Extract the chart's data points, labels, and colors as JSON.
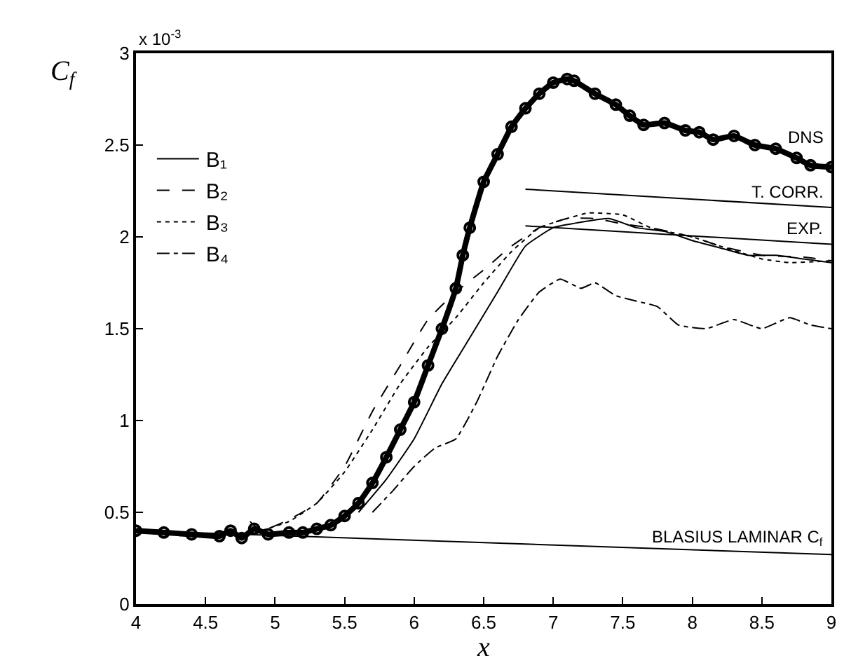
{
  "chart_data": {
    "type": "line",
    "xlabel": "x",
    "ylabel": "C$_{f}$",
    "annotations": [
      "x 10$^{-3}$"
    ],
    "xlim": [
      4,
      9
    ],
    "xticks": [
      4,
      4.5,
      5,
      5.5,
      6,
      6.5,
      7,
      7.5,
      8,
      8.5,
      9
    ],
    "ylim": [
      0,
      3
    ],
    "yticks": [
      0,
      0.5,
      1,
      1.5,
      2,
      2.5,
      3
    ],
    "legend": "top left",
    "series": [
      {
        "name": "DNS",
        "color": "#000000",
        "type": "line",
        "marker": "circle",
        "x": [
          4,
          4.2,
          4.4,
          4.6,
          4.68,
          4.76,
          4.85,
          4.95,
          5.1,
          5.2,
          5.3,
          5.4,
          5.5,
          5.6,
          5.7,
          5.8,
          5.9,
          6.0,
          6.1,
          6.2,
          6.3,
          6.35,
          6.4,
          6.5,
          6.6,
          6.7,
          6.8,
          6.9,
          7.0,
          7.1,
          7.15,
          7.3,
          7.45,
          7.55,
          7.65,
          7.8,
          7.95,
          8.05,
          8.15,
          8.3,
          8.45,
          8.6,
          8.75,
          8.85,
          9.0
        ],
        "values": [
          0.4,
          0.39,
          0.38,
          0.37,
          0.4,
          0.36,
          0.41,
          0.38,
          0.39,
          0.39,
          0.41,
          0.43,
          0.48,
          0.55,
          0.66,
          0.8,
          0.95,
          1.1,
          1.3,
          1.5,
          1.72,
          1.9,
          2.05,
          2.3,
          2.45,
          2.6,
          2.7,
          2.78,
          2.84,
          2.86,
          2.85,
          2.78,
          2.72,
          2.66,
          2.61,
          2.62,
          2.58,
          2.57,
          2.53,
          2.55,
          2.5,
          2.48,
          2.43,
          2.39,
          2.38
        ]
      },
      {
        "name": "T. CORR.",
        "color": "#000000",
        "x": [
          6.8,
          9.0
        ],
        "values": [
          2.26,
          2.16
        ]
      },
      {
        "name": "EXP.",
        "color": "#000000",
        "x": [
          6.8,
          9.0
        ],
        "values": [
          2.06,
          1.96
        ]
      },
      {
        "name": "BLASIUS LAMINAR C$_{f}$",
        "color": "#000000",
        "x": [
          4.0,
          9.0
        ],
        "values": [
          0.4,
          0.27
        ]
      },
      {
        "name": "B₁",
        "color": "#000000",
        "line_style": "solid",
        "x": [
          5.6,
          5.8,
          6.0,
          6.2,
          6.4,
          6.6,
          6.8,
          7.0,
          7.2,
          7.4,
          7.6,
          7.8,
          8.0,
          8.2,
          8.4,
          8.6,
          8.8,
          9.0
        ],
        "values": [
          0.5,
          0.68,
          0.9,
          1.2,
          1.45,
          1.7,
          1.95,
          2.05,
          2.08,
          2.1,
          2.05,
          2.03,
          1.98,
          1.94,
          1.9,
          1.9,
          1.88,
          1.86
        ]
      },
      {
        "name": "B₂",
        "color": "#000000",
        "line_style": "dashed",
        "x": [
          4.82,
          4.9,
          5.1,
          5.3,
          5.5,
          5.7,
          5.9,
          6.1,
          6.3,
          6.5,
          6.7,
          6.9,
          7.1,
          7.3,
          7.5,
          7.7,
          8.0,
          8.2,
          8.5,
          8.8,
          9.0
        ],
        "values": [
          0.45,
          0.4,
          0.46,
          0.55,
          0.75,
          1.05,
          1.3,
          1.55,
          1.7,
          1.82,
          1.95,
          2.05,
          2.1,
          2.1,
          2.07,
          2.05,
          2.0,
          1.95,
          1.9,
          1.89,
          1.87
        ]
      },
      {
        "name": "B₃",
        "color": "#000000",
        "line_style": "dotted",
        "x": [
          4.9,
          5.1,
          5.3,
          5.5,
          5.7,
          5.9,
          6.1,
          6.3,
          6.5,
          6.7,
          6.9,
          7.1,
          7.25,
          7.5,
          7.7,
          8.0,
          8.2,
          8.5,
          8.7,
          9.0
        ],
        "values": [
          0.4,
          0.45,
          0.55,
          0.72,
          0.95,
          1.2,
          1.4,
          1.56,
          1.75,
          1.92,
          2.05,
          2.1,
          2.13,
          2.12,
          2.05,
          2.0,
          1.95,
          1.88,
          1.86,
          1.87
        ]
      },
      {
        "name": "B₄",
        "color": "#000000",
        "line_style": "dashdot",
        "x": [
          5.7,
          5.85,
          6.0,
          6.15,
          6.3,
          6.45,
          6.6,
          6.75,
          6.9,
          7.05,
          7.2,
          7.3,
          7.45,
          7.6,
          7.75,
          7.9,
          8.1,
          8.3,
          8.5,
          8.7,
          8.85,
          9.0
        ],
        "values": [
          0.5,
          0.62,
          0.75,
          0.85,
          0.9,
          1.1,
          1.35,
          1.55,
          1.7,
          1.77,
          1.72,
          1.75,
          1.68,
          1.65,
          1.62,
          1.52,
          1.5,
          1.55,
          1.5,
          1.56,
          1.52,
          1.5
        ]
      }
    ]
  }
}
